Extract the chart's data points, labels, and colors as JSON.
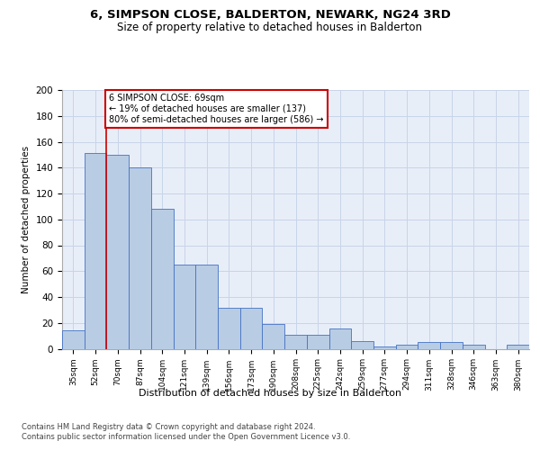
{
  "title": "6, SIMPSON CLOSE, BALDERTON, NEWARK, NG24 3RD",
  "subtitle": "Size of property relative to detached houses in Balderton",
  "xlabel": "Distribution of detached houses by size in Balderton",
  "ylabel": "Number of detached properties",
  "categories": [
    "35sqm",
    "52sqm",
    "70sqm",
    "87sqm",
    "104sqm",
    "121sqm",
    "139sqm",
    "156sqm",
    "173sqm",
    "190sqm",
    "208sqm",
    "225sqm",
    "242sqm",
    "259sqm",
    "277sqm",
    "294sqm",
    "311sqm",
    "328sqm",
    "346sqm",
    "363sqm",
    "380sqm"
  ],
  "values": [
    14,
    151,
    150,
    140,
    108,
    65,
    65,
    32,
    32,
    19,
    11,
    11,
    16,
    6,
    2,
    3,
    5,
    5,
    3,
    0,
    3
  ],
  "bar_color": "#b8cce4",
  "bar_edge_color": "#4472c4",
  "property_line_x": 1.5,
  "annotation_text": "6 SIMPSON CLOSE: 69sqm\n← 19% of detached houses are smaller (137)\n80% of semi-detached houses are larger (586) →",
  "annotation_box_color": "#ffffff",
  "annotation_box_edge": "#cc0000",
  "vline_color": "#cc0000",
  "ylim": [
    0,
    200
  ],
  "yticks": [
    0,
    20,
    40,
    60,
    80,
    100,
    120,
    140,
    160,
    180,
    200
  ],
  "grid_color": "#c8d4e8",
  "bg_color": "#e8eef8",
  "title_fontsize": 9.5,
  "subtitle_fontsize": 8.5,
  "footer_line1": "Contains HM Land Registry data © Crown copyright and database right 2024.",
  "footer_line2": "Contains public sector information licensed under the Open Government Licence v3.0."
}
